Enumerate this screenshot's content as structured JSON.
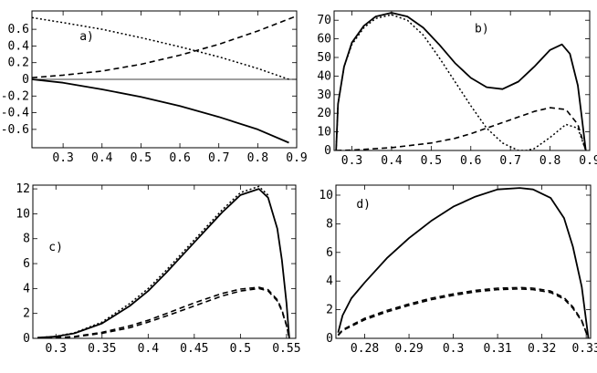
{
  "chart_data": [
    {
      "type": "line",
      "panel_label": "a)",
      "xlim": [
        0.22,
        0.9
      ],
      "ylim": [
        -0.82,
        0.82
      ],
      "xticks": [
        "0.3",
        "0.4",
        "0.5",
        "0.6",
        "0.7",
        "0.8",
        "0.9"
      ],
      "xtick_values": [
        0.3,
        0.4,
        0.5,
        0.6,
        0.7,
        0.8,
        0.9
      ],
      "yticks": [
        "0.6",
        "0.4",
        "0.2",
        "0",
        "-0.2",
        "-0.4",
        "-0.6"
      ],
      "ytick_values": [
        0.6,
        0.4,
        0.2,
        0,
        -0.2,
        -0.4,
        -0.6
      ],
      "zero_line": true,
      "series": [
        {
          "style": "solid",
          "x": [
            0.22,
            0.3,
            0.4,
            0.5,
            0.6,
            0.7,
            0.8,
            0.88
          ],
          "y": [
            0.0,
            -0.04,
            -0.12,
            -0.21,
            -0.32,
            -0.45,
            -0.6,
            -0.76
          ]
        },
        {
          "style": "dashed",
          "x": [
            0.22,
            0.3,
            0.4,
            0.5,
            0.6,
            0.7,
            0.8,
            0.9
          ],
          "y": [
            0.02,
            0.05,
            0.1,
            0.18,
            0.29,
            0.42,
            0.58,
            0.76
          ]
        },
        {
          "style": "dotted",
          "x": [
            0.22,
            0.3,
            0.4,
            0.5,
            0.6,
            0.7,
            0.8,
            0.88
          ],
          "y": [
            0.74,
            0.68,
            0.6,
            0.5,
            0.39,
            0.27,
            0.13,
            0.0
          ]
        }
      ]
    },
    {
      "type": "line",
      "panel_label": "b)",
      "xlim": [
        0.255,
        0.9
      ],
      "ylim": [
        0,
        75
      ],
      "xticks": [
        "0.3",
        "0.4",
        "0.5",
        "0.6",
        "0.7",
        "0.8",
        "0.9"
      ],
      "xtick_values": [
        0.3,
        0.4,
        0.5,
        0.6,
        0.7,
        0.8,
        0.9
      ],
      "yticks": [
        "0",
        "10",
        "20",
        "30",
        "40",
        "50",
        "60",
        "70"
      ],
      "ytick_values": [
        0,
        10,
        20,
        30,
        40,
        50,
        60,
        70
      ],
      "zero_line": false,
      "series": [
        {
          "style": "solid",
          "x": [
            0.26,
            0.265,
            0.28,
            0.3,
            0.33,
            0.36,
            0.4,
            0.44,
            0.48,
            0.52,
            0.56,
            0.6,
            0.64,
            0.68,
            0.72,
            0.76,
            0.8,
            0.83,
            0.85,
            0.87,
            0.88,
            0.89
          ],
          "y": [
            0,
            25,
            45,
            58,
            67,
            72,
            74,
            72,
            66,
            57,
            47,
            39,
            34,
            33,
            37,
            45,
            54,
            57,
            52,
            35,
            18,
            0
          ]
        },
        {
          "style": "dotted",
          "x": [
            0.26,
            0.265,
            0.28,
            0.3,
            0.33,
            0.36,
            0.4,
            0.44,
            0.48,
            0.52,
            0.56,
            0.6,
            0.64,
            0.68,
            0.72,
            0.74,
            0.76,
            0.8,
            0.84,
            0.87,
            0.89
          ],
          "y": [
            0,
            25,
            45,
            57,
            66,
            71,
            73,
            70,
            62,
            50,
            37,
            24,
            12,
            4,
            0,
            0,
            1,
            7,
            14,
            12,
            0
          ]
        },
        {
          "style": "dashed",
          "x": [
            0.26,
            0.3,
            0.4,
            0.5,
            0.56,
            0.6,
            0.64,
            0.68,
            0.72,
            0.76,
            0.8,
            0.84,
            0.87,
            0.89
          ],
          "y": [
            0,
            0.2,
            1.5,
            4,
            6.5,
            9,
            12,
            15,
            18,
            21,
            23,
            22,
            14,
            0
          ]
        }
      ]
    },
    {
      "type": "line",
      "panel_label": "c)",
      "xlim": [
        0.275,
        0.56
      ],
      "ylim": [
        0,
        12.3
      ],
      "xticks": [
        "0.3",
        "0.35",
        "0.4",
        "0.45",
        "0.5",
        "0.55"
      ],
      "xtick_values": [
        0.3,
        0.35,
        0.4,
        0.45,
        0.5,
        0.55
      ],
      "yticks": [
        "0",
        "2",
        "4",
        "6",
        "8",
        "10",
        "12"
      ],
      "ytick_values": [
        0,
        2,
        4,
        6,
        8,
        10,
        12
      ],
      "zero_line": false,
      "series": [
        {
          "style": "solid",
          "x": [
            0.28,
            0.3,
            0.32,
            0.35,
            0.38,
            0.4,
            0.42,
            0.45,
            0.48,
            0.5,
            0.52,
            0.53,
            0.54,
            0.545,
            0.55,
            0.553
          ],
          "y": [
            0.05,
            0.15,
            0.4,
            1.2,
            2.6,
            3.8,
            5.3,
            7.7,
            10.1,
            11.5,
            12,
            11.3,
            8.8,
            6.3,
            2.8,
            0
          ]
        },
        {
          "style": "dotted",
          "x": [
            0.28,
            0.3,
            0.32,
            0.35,
            0.38,
            0.4,
            0.42,
            0.45,
            0.48,
            0.5,
            0.52,
            0.53
          ],
          "y": [
            0.05,
            0.16,
            0.45,
            1.3,
            2.8,
            4.0,
            5.5,
            7.9,
            10.3,
            11.7,
            12.2,
            11.5
          ]
        },
        {
          "style": "dashed",
          "x": [
            0.28,
            0.3,
            0.32,
            0.35,
            0.38,
            0.4,
            0.42,
            0.45,
            0.48,
            0.5,
            0.52,
            0.53,
            0.54,
            0.545,
            0.55,
            0.553
          ],
          "y": [
            0.02,
            0.05,
            0.12,
            0.4,
            0.85,
            1.3,
            1.8,
            2.6,
            3.4,
            3.8,
            4.0,
            3.8,
            3.0,
            2.2,
            1.0,
            0
          ]
        },
        {
          "style": "dashed",
          "x": [
            0.28,
            0.3,
            0.32,
            0.35,
            0.38,
            0.4,
            0.42,
            0.45,
            0.48,
            0.5,
            0.52,
            0.53,
            0.54,
            0.545,
            0.55,
            0.553
          ],
          "y": [
            0.02,
            0.06,
            0.15,
            0.48,
            1.0,
            1.45,
            2.0,
            2.85,
            3.6,
            3.95,
            4.1,
            3.9,
            3.1,
            2.3,
            1.05,
            0
          ]
        }
      ]
    },
    {
      "type": "line",
      "panel_label": "d)",
      "xlim": [
        0.2735,
        0.331
      ],
      "ylim": [
        0,
        10.7
      ],
      "xticks": [
        "0.28",
        "0.29",
        "0.3",
        "0.31",
        "0.32",
        "0.33"
      ],
      "xtick_values": [
        0.28,
        0.29,
        0.3,
        0.31,
        0.32,
        0.33
      ],
      "yticks": [
        "0",
        "2",
        "4",
        "6",
        "8",
        "10"
      ],
      "ytick_values": [
        0,
        2,
        4,
        6,
        8,
        10
      ],
      "zero_line": false,
      "series": [
        {
          "style": "solid",
          "x": [
            0.274,
            0.275,
            0.277,
            0.28,
            0.285,
            0.29,
            0.295,
            0.3,
            0.305,
            0.31,
            0.315,
            0.318,
            0.322,
            0.325,
            0.327,
            0.329,
            0.3305
          ],
          "y": [
            0.4,
            1.6,
            2.8,
            3.9,
            5.6,
            7.0,
            8.2,
            9.2,
            9.9,
            10.4,
            10.5,
            10.4,
            9.8,
            8.4,
            6.4,
            3.6,
            0
          ]
        },
        {
          "style": "dashed",
          "x": [
            0.274,
            0.275,
            0.28,
            0.285,
            0.29,
            0.295,
            0.3,
            0.305,
            0.31,
            0.315,
            0.318,
            0.322,
            0.325,
            0.327,
            0.329,
            0.3305
          ],
          "y": [
            0.2,
            0.55,
            1.3,
            1.85,
            2.3,
            2.7,
            3.0,
            3.25,
            3.4,
            3.45,
            3.4,
            3.2,
            2.75,
            2.1,
            1.2,
            0
          ]
        },
        {
          "style": "dashed",
          "x": [
            0.274,
            0.275,
            0.28,
            0.285,
            0.29,
            0.295,
            0.3,
            0.305,
            0.31,
            0.315,
            0.318,
            0.322,
            0.325,
            0.327,
            0.329,
            0.3305
          ],
          "y": [
            0.25,
            0.6,
            1.4,
            1.95,
            2.4,
            2.8,
            3.1,
            3.35,
            3.5,
            3.55,
            3.5,
            3.3,
            2.85,
            2.2,
            1.25,
            0
          ]
        }
      ]
    }
  ]
}
